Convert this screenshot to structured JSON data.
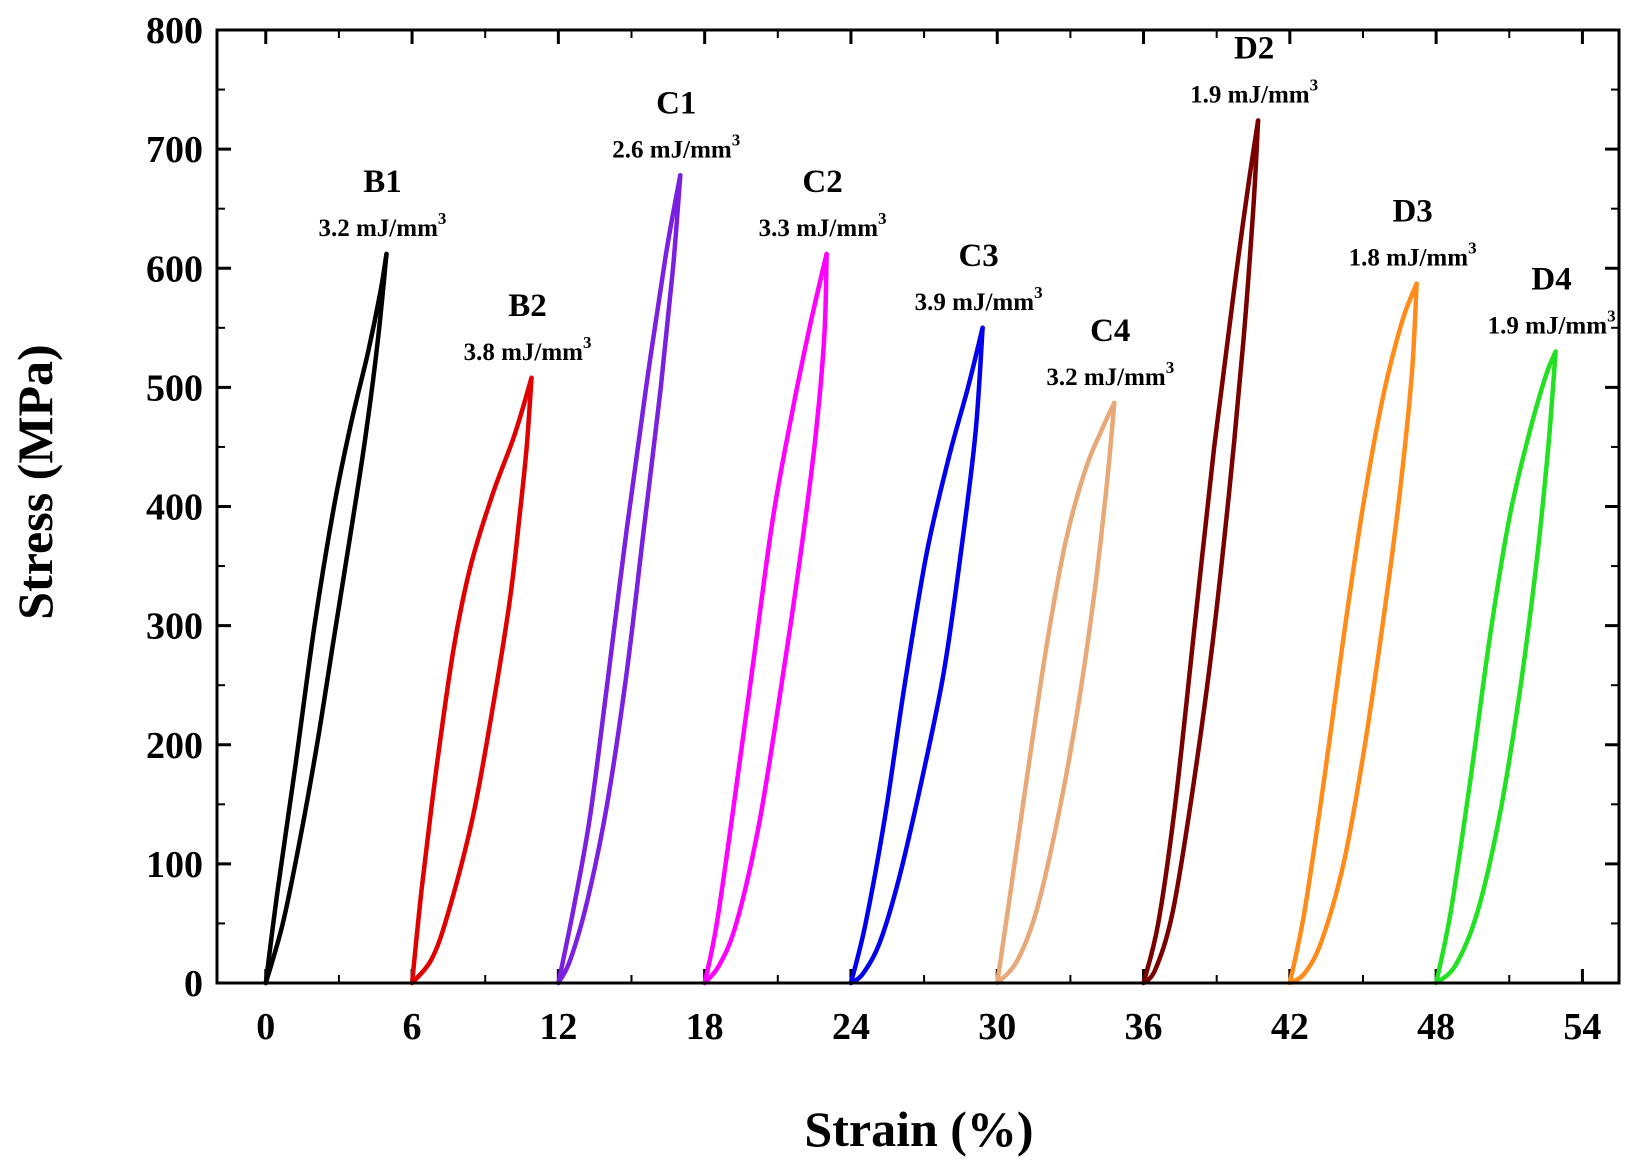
{
  "chart_data": {
    "type": "line",
    "title": "",
    "xlabel": "Strain (%)",
    "ylabel": "Stress (MPa)",
    "xlim": [
      -2,
      55.5
    ],
    "ylim": [
      0,
      800
    ],
    "xticks": [
      0,
      6,
      12,
      18,
      24,
      30,
      36,
      42,
      48,
      54
    ],
    "yticks": [
      0,
      100,
      200,
      300,
      400,
      500,
      600,
      700,
      800
    ],
    "energy_unit": "mJ/mm",
    "energy_unit_exp": "3",
    "series": [
      {
        "name": "B1",
        "energy": "3.2",
        "color": "#000000",
        "start_strain": 0,
        "loading": [
          [
            0,
            0
          ],
          [
            0.5,
            80
          ],
          [
            1.2,
            180
          ],
          [
            2.0,
            300
          ],
          [
            2.8,
            400
          ],
          [
            3.5,
            470
          ],
          [
            4.2,
            530
          ],
          [
            4.7,
            580
          ],
          [
            4.95,
            612
          ]
        ],
        "unloading": [
          [
            4.95,
            612
          ],
          [
            4.6,
            540
          ],
          [
            4.1,
            460
          ],
          [
            3.5,
            380
          ],
          [
            2.8,
            290
          ],
          [
            2.1,
            200
          ],
          [
            1.4,
            120
          ],
          [
            0.7,
            50
          ],
          [
            0,
            0
          ]
        ]
      },
      {
        "name": "B2",
        "energy": "3.8",
        "color": "#e00000",
        "start_strain": 6,
        "loading": [
          [
            6,
            0
          ],
          [
            6.4,
            80
          ],
          [
            7.0,
            180
          ],
          [
            7.7,
            280
          ],
          [
            8.4,
            350
          ],
          [
            9.3,
            410
          ],
          [
            10.2,
            460
          ],
          [
            10.9,
            508
          ]
        ],
        "unloading": [
          [
            10.9,
            508
          ],
          [
            10.7,
            450
          ],
          [
            10.4,
            390
          ],
          [
            10.0,
            320
          ],
          [
            9.3,
            230
          ],
          [
            8.5,
            140
          ],
          [
            7.5,
            60
          ],
          [
            6.8,
            20
          ],
          [
            6,
            0
          ]
        ]
      },
      {
        "name": "C1",
        "energy": "2.6",
        "color": "#7b1fe0",
        "start_strain": 12,
        "loading": [
          [
            12,
            0
          ],
          [
            12.6,
            60
          ],
          [
            13.3,
            140
          ],
          [
            14.0,
            250
          ],
          [
            14.8,
            380
          ],
          [
            15.6,
            500
          ],
          [
            16.4,
            610
          ],
          [
            17,
            678
          ]
        ],
        "unloading": [
          [
            17,
            678
          ],
          [
            16.7,
            600
          ],
          [
            16.2,
            500
          ],
          [
            15.5,
            380
          ],
          [
            14.8,
            260
          ],
          [
            14.0,
            150
          ],
          [
            13.2,
            70
          ],
          [
            12.5,
            20
          ],
          [
            12,
            0
          ]
        ]
      },
      {
        "name": "C2",
        "energy": "3.3",
        "color": "#ff00ff",
        "start_strain": 18,
        "loading": [
          [
            18,
            0
          ],
          [
            18.5,
            50
          ],
          [
            19.2,
            150
          ],
          [
            20.0,
            270
          ],
          [
            20.8,
            390
          ],
          [
            21.6,
            480
          ],
          [
            22.3,
            550
          ],
          [
            23.0,
            612
          ]
        ],
        "unloading": [
          [
            23.0,
            612
          ],
          [
            22.9,
            540
          ],
          [
            22.5,
            450
          ],
          [
            21.8,
            340
          ],
          [
            21.0,
            230
          ],
          [
            20.2,
            130
          ],
          [
            19.3,
            50
          ],
          [
            18.6,
            15
          ],
          [
            18,
            0
          ]
        ]
      },
      {
        "name": "C3",
        "energy": "3.9",
        "color": "#0000ee",
        "start_strain": 24,
        "loading": [
          [
            24,
            0
          ],
          [
            24.6,
            50
          ],
          [
            25.4,
            140
          ],
          [
            26.2,
            250
          ],
          [
            27.1,
            360
          ],
          [
            28.0,
            440
          ],
          [
            28.8,
            500
          ],
          [
            29.4,
            550
          ]
        ],
        "unloading": [
          [
            29.4,
            550
          ],
          [
            29.1,
            460
          ],
          [
            28.5,
            360
          ],
          [
            27.8,
            260
          ],
          [
            26.9,
            170
          ],
          [
            26.0,
            90
          ],
          [
            25.2,
            35
          ],
          [
            24.5,
            8
          ],
          [
            24,
            0
          ]
        ]
      },
      {
        "name": "C4",
        "energy": "3.2",
        "color": "#e8a878",
        "start_strain": 30,
        "loading": [
          [
            30,
            0
          ],
          [
            30.5,
            70
          ],
          [
            31.2,
            170
          ],
          [
            32.0,
            280
          ],
          [
            32.8,
            370
          ],
          [
            33.6,
            430
          ],
          [
            34.3,
            465
          ],
          [
            34.8,
            487
          ]
        ],
        "unloading": [
          [
            34.8,
            487
          ],
          [
            34.5,
            420
          ],
          [
            34.0,
            330
          ],
          [
            33.3,
            230
          ],
          [
            32.5,
            140
          ],
          [
            31.6,
            60
          ],
          [
            30.8,
            18
          ],
          [
            30,
            0
          ]
        ]
      },
      {
        "name": "D2",
        "energy": "1.9",
        "color": "#7a0000",
        "start_strain": 36,
        "loading": [
          [
            36,
            0
          ],
          [
            36.6,
            50
          ],
          [
            37.3,
            150
          ],
          [
            38.1,
            300
          ],
          [
            38.9,
            450
          ],
          [
            39.7,
            580
          ],
          [
            40.3,
            670
          ],
          [
            40.7,
            724
          ]
        ],
        "unloading": [
          [
            40.7,
            724
          ],
          [
            40.5,
            650
          ],
          [
            40.1,
            540
          ],
          [
            39.5,
            410
          ],
          [
            38.8,
            280
          ],
          [
            38.0,
            160
          ],
          [
            37.2,
            60
          ],
          [
            36.5,
            12
          ],
          [
            36,
            0
          ]
        ]
      },
      {
        "name": "D3",
        "energy": "1.8",
        "color": "#ff8c1a",
        "start_strain": 42,
        "loading": [
          [
            42,
            0
          ],
          [
            42.6,
            60
          ],
          [
            43.4,
            170
          ],
          [
            44.2,
            290
          ],
          [
            45.0,
            400
          ],
          [
            45.8,
            490
          ],
          [
            46.6,
            555
          ],
          [
            47.2,
            587
          ]
        ],
        "unloading": [
          [
            47.2,
            587
          ],
          [
            47.0,
            510
          ],
          [
            46.5,
            410
          ],
          [
            45.8,
            300
          ],
          [
            45.0,
            190
          ],
          [
            44.2,
            100
          ],
          [
            43.3,
            35
          ],
          [
            42.6,
            8
          ],
          [
            42,
            0
          ]
        ]
      },
      {
        "name": "D4",
        "energy": "1.9",
        "color": "#22e022",
        "start_strain": 48,
        "loading": [
          [
            48,
            0
          ],
          [
            48.6,
            60
          ],
          [
            49.4,
            170
          ],
          [
            50.2,
            290
          ],
          [
            51.0,
            390
          ],
          [
            51.8,
            460
          ],
          [
            52.5,
            510
          ],
          [
            52.9,
            530
          ]
        ],
        "unloading": [
          [
            52.9,
            530
          ],
          [
            52.6,
            450
          ],
          [
            52.1,
            350
          ],
          [
            51.4,
            240
          ],
          [
            50.6,
            140
          ],
          [
            49.7,
            60
          ],
          [
            48.8,
            15
          ],
          [
            48,
            0
          ]
        ]
      }
    ]
  }
}
